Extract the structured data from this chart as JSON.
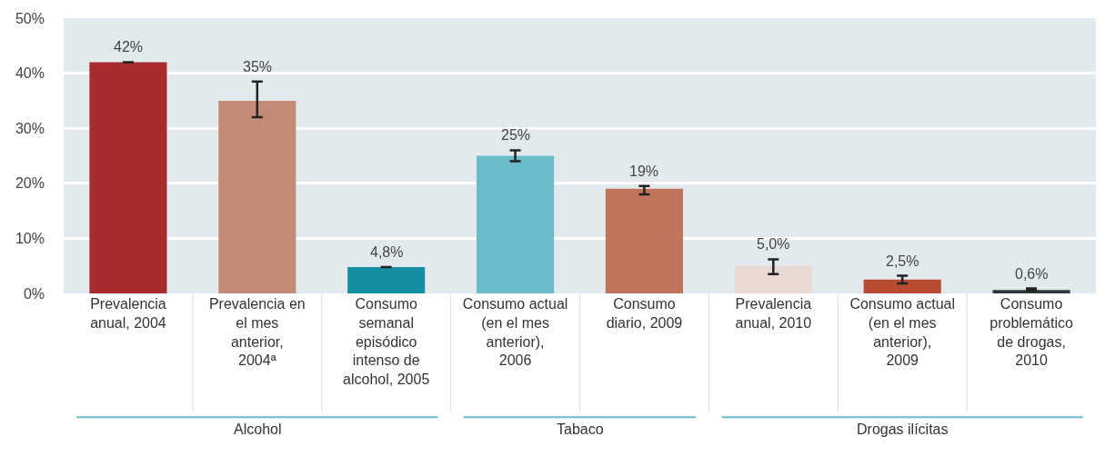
{
  "chart_data": {
    "type": "bar",
    "categories": [
      "Prevalencia anual, 2004",
      "Prevalencia en el mes anterior, 2004ª",
      "Consumo semanal episódico intenso de alcohol, 2005",
      "Consumo actual (en el mes anterior), 2006",
      "Consumo diario, 2009",
      "Prevalencia anual, 2010",
      "Consumo actual (en el mes anterior), 2009",
      "Consumo problemático de drogas, 2010"
    ],
    "values": [
      42,
      35,
      4.8,
      25,
      19,
      5.0,
      2.5,
      0.6
    ],
    "colors": [
      "#a82b2e",
      "#c48a78",
      "#148ea0",
      "#6bbccb",
      "#c2735c",
      "#ead8d3",
      "#b84a32",
      "#2b3a3a"
    ],
    "value_labels": [
      "42%",
      "35%",
      "4,8%",
      "25%",
      "19%",
      "5,0%",
      "2,5%",
      "0,6%"
    ],
    "errors": [
      null,
      [
        32,
        38.5
      ],
      null,
      [
        24,
        26
      ],
      [
        18,
        19.5
      ],
      [
        3.5,
        6.2
      ],
      [
        1.8,
        3.2
      ],
      [
        0.5,
        0.9
      ]
    ],
    "ylim": [
      0,
      50
    ],
    "yticks": [
      {
        "value": 0,
        "label": "0%"
      },
      {
        "value": 10,
        "label": "10%"
      },
      {
        "value": 20,
        "label": "20%"
      },
      {
        "value": 30,
        "label": "30%"
      },
      {
        "value": 40,
        "label": "40%"
      },
      {
        "value": 50,
        "label": "50%"
      }
    ],
    "grid": "y",
    "annotations": [
      "Alcohol",
      "Tabaco",
      "Drogas ilícitas"
    ]
  }
}
